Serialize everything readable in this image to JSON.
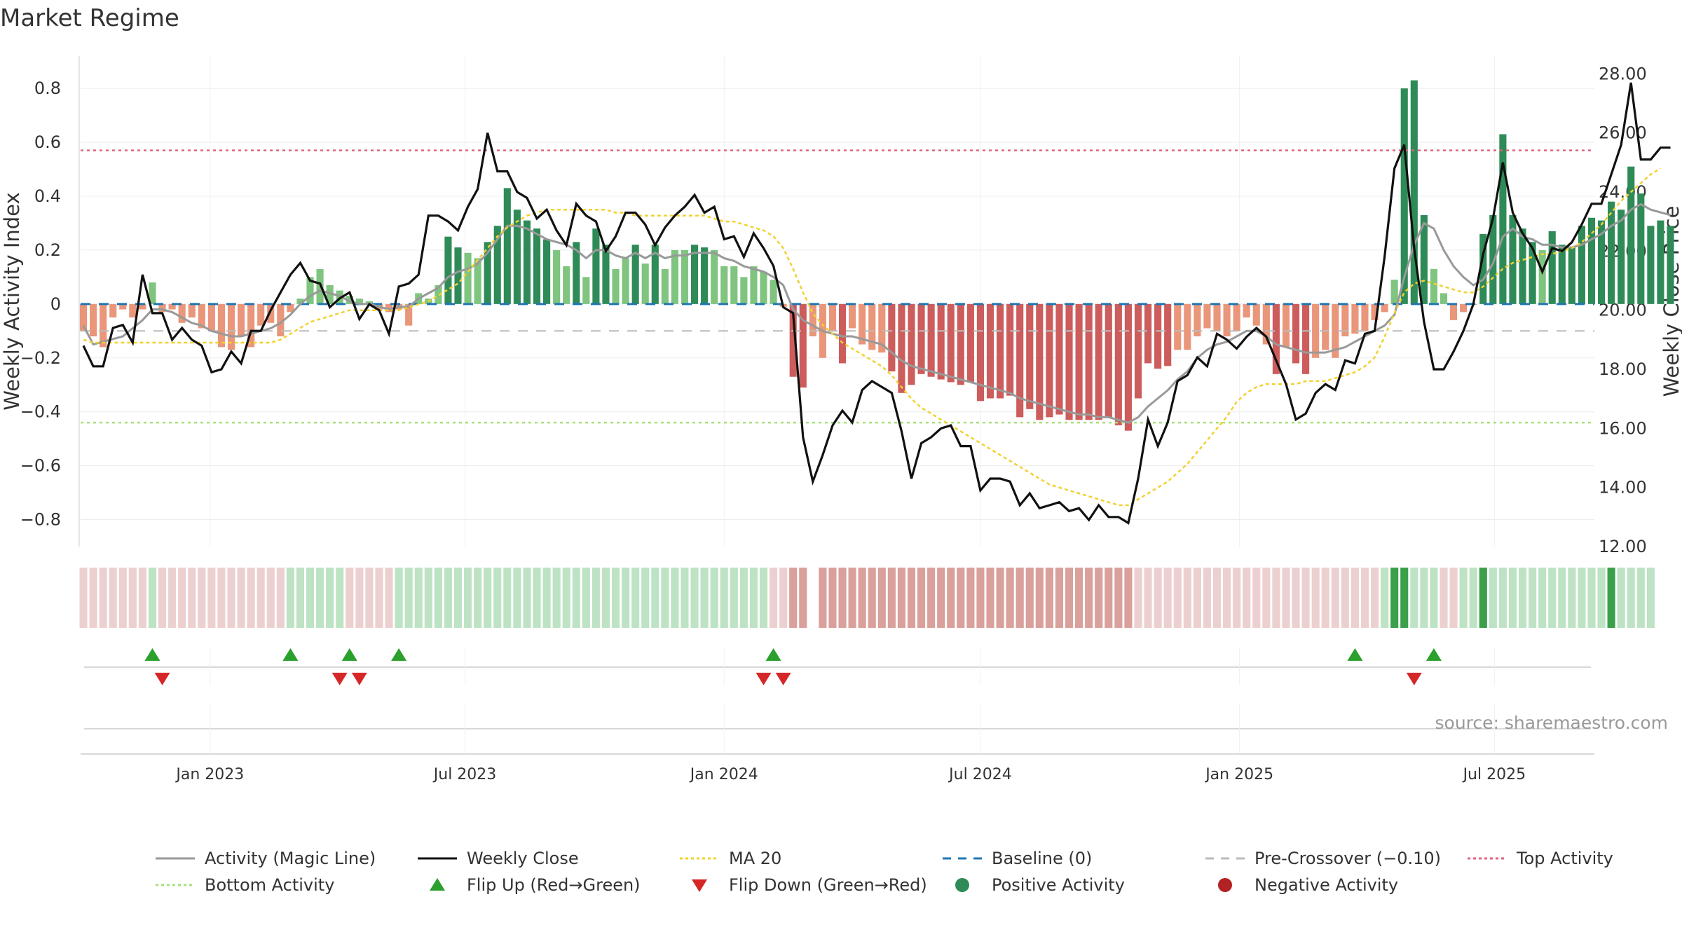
{
  "title": "Market Regime",
  "source": "source: sharemaestro.com",
  "colors": {
    "pos_strong": "#2e8b57",
    "pos_light": "#7fc47f",
    "neg_strong": "#cd5c5c",
    "neg_light": "#e9967a",
    "activity_line": "#999999",
    "close_line": "#111111",
    "ma_line": "#f2d12e",
    "baseline": "#1f77b4",
    "pre_cross": "#bbbbbb",
    "top": "#e0647a",
    "bottom": "#a8e07a",
    "flip_up": "#2ca02c",
    "flip_down": "#d62728"
  },
  "chart_data": {
    "type": "bar",
    "title": "Market Regime",
    "ylabel": "Weekly Activity Index",
    "y2label": "Weekly Close Price",
    "ylim": [
      -0.9,
      0.92
    ],
    "y2lim": [
      12,
      28.6
    ],
    "yticks": [
      -0.8,
      -0.6,
      -0.4,
      -0.2,
      0,
      0.2,
      0.4,
      0.6,
      0.8
    ],
    "ytick_labels": [
      "−0.8",
      "−0.6",
      "−0.4",
      "−0.2",
      "0",
      "0.2",
      "0.4",
      "0.6",
      "0.8"
    ],
    "y2ticks": [
      12,
      14,
      16,
      18,
      20,
      22,
      24,
      26,
      28
    ],
    "y2tick_labels": [
      "12.00",
      "14.00",
      "16.00",
      "18.00",
      "20.00",
      "22.00",
      "24.00",
      "26.00",
      "28.00"
    ],
    "xaxis_start": "2022-10-01",
    "xaxis_end": "2025-09-10",
    "xtick_dates": [
      "2023-01-01",
      "2023-07-01",
      "2024-01-01",
      "2024-07-01",
      "2025-01-01",
      "2025-07-01"
    ],
    "xtick_labels": [
      "Jan 2023",
      "Jul 2023",
      "Jan 2024",
      "Jul 2024",
      "Jan 2025",
      "Jul 2025"
    ],
    "first_week": "2022-10-03",
    "top_activity": 0.57,
    "bottom_activity": -0.44,
    "baseline": 0,
    "pre_crossover": -0.1,
    "activity": [
      -0.1,
      -0.12,
      -0.16,
      -0.05,
      -0.02,
      -0.05,
      -0.02,
      0.08,
      -0.03,
      -0.02,
      -0.07,
      -0.05,
      -0.09,
      -0.1,
      -0.16,
      -0.17,
      -0.12,
      -0.16,
      -0.08,
      -0.07,
      -0.12,
      -0.03,
      0.02,
      0.1,
      0.13,
      0.07,
      0.05,
      0.03,
      0.02,
      0.01,
      -0.02,
      -0.03,
      -0.02,
      -0.08,
      0.04,
      0.02,
      0.07,
      0.25,
      0.21,
      0.19,
      0.17,
      0.23,
      0.29,
      0.43,
      0.35,
      0.31,
      0.28,
      0.24,
      0.2,
      0.14,
      0.23,
      0.1,
      0.28,
      0.22,
      0.13,
      0.17,
      0.22,
      0.15,
      0.22,
      0.13,
      0.2,
      0.2,
      0.22,
      0.21,
      0.2,
      0.14,
      0.14,
      0.1,
      0.14,
      0.12,
      0.09,
      -0.01,
      -0.27,
      -0.31,
      -0.12,
      -0.2,
      -0.1,
      -0.22,
      -0.09,
      -0.15,
      -0.17,
      -0.18,
      -0.25,
      -0.33,
      -0.3,
      -0.26,
      -0.27,
      -0.28,
      -0.29,
      -0.3,
      -0.29,
      -0.36,
      -0.35,
      -0.35,
      -0.34,
      -0.42,
      -0.39,
      -0.43,
      -0.42,
      -0.41,
      -0.43,
      -0.43,
      -0.43,
      -0.43,
      -0.42,
      -0.45,
      -0.47,
      -0.35,
      -0.22,
      -0.24,
      -0.23,
      -0.17,
      -0.17,
      -0.12,
      -0.09,
      -0.1,
      -0.12,
      -0.1,
      -0.05,
      -0.08,
      -0.15,
      -0.26,
      -0.16,
      -0.22,
      -0.26,
      -0.2,
      -0.17,
      -0.2,
      -0.12,
      -0.11,
      -0.1,
      -0.06,
      -0.03,
      0.09,
      0.8,
      0.83,
      0.33,
      0.13,
      0.04,
      -0.06,
      -0.03,
      0.0,
      0.26,
      0.33,
      0.63,
      0.33,
      0.28,
      0.23,
      0.2,
      0.27,
      0.22,
      0.21,
      0.29,
      0.32,
      0.31,
      0.38,
      0.35,
      0.51,
      0.41,
      0.29,
      0.31,
      0.29
    ],
    "close": [
      18.8,
      18.1,
      18.1,
      19.4,
      19.5,
      18.9,
      21.2,
      19.9,
      19.9,
      19.0,
      19.4,
      19.0,
      18.8,
      17.9,
      18.0,
      18.6,
      18.2,
      19.3,
      19.3,
      20.0,
      20.6,
      21.2,
      21.6,
      21.0,
      20.9,
      20.1,
      20.4,
      20.6,
      19.7,
      20.2,
      20.0,
      19.2,
      20.8,
      20.9,
      21.2,
      23.2,
      23.2,
      23.0,
      22.7,
      23.5,
      24.1,
      26.0,
      24.7,
      24.7,
      24.0,
      23.8,
      23.1,
      23.4,
      22.7,
      22.2,
      23.6,
      23.2,
      23.0,
      22.0,
      22.5,
      23.3,
      23.3,
      22.9,
      22.2,
      22.8,
      23.2,
      23.5,
      23.9,
      23.3,
      23.5,
      22.4,
      22.5,
      21.8,
      22.6,
      22.1,
      21.5,
      20.1,
      19.9,
      15.7,
      14.2,
      15.1,
      16.1,
      16.6,
      16.2,
      17.3,
      17.6,
      17.4,
      17.2,
      15.9,
      14.3,
      15.5,
      15.7,
      16.0,
      16.1,
      15.4,
      15.4,
      13.9,
      14.3,
      14.3,
      14.2,
      13.4,
      13.8,
      13.3,
      13.4,
      13.5,
      13.2,
      13.3,
      12.9,
      13.4,
      13.0,
      13.0,
      12.8,
      14.3,
      16.3,
      15.4,
      16.2,
      17.6,
      17.8,
      18.4,
      18.1,
      19.2,
      19.0,
      18.7,
      19.1,
      19.4,
      19.1,
      18.3,
      17.5,
      16.3,
      16.5,
      17.2,
      17.5,
      17.3,
      18.3,
      18.2,
      19.2,
      19.3,
      21.8,
      24.8,
      25.6,
      22.1,
      19.6,
      18.0,
      18.0,
      18.6,
      19.3,
      20.2,
      21.9,
      23.1,
      25.0,
      23.3,
      22.6,
      22.1,
      21.3,
      22.1,
      22.0,
      22.3,
      22.9,
      23.6,
      23.6,
      24.6,
      25.6,
      27.7,
      25.1,
      25.1,
      25.5,
      25.5
    ],
    "activity_line": [
      -0.08,
      -0.15,
      -0.14,
      -0.13,
      -0.12,
      -0.09,
      -0.06,
      -0.02,
      -0.02,
      -0.03,
      -0.05,
      -0.07,
      -0.08,
      -0.1,
      -0.11,
      -0.12,
      -0.12,
      -0.11,
      -0.1,
      -0.09,
      -0.07,
      -0.04,
      0.0,
      0.03,
      0.05,
      0.04,
      0.03,
      0.01,
      0.0,
      0.0,
      -0.01,
      -0.02,
      -0.01,
      -0.01,
      0.02,
      0.04,
      0.06,
      0.1,
      0.12,
      0.13,
      0.15,
      0.19,
      0.24,
      0.29,
      0.29,
      0.28,
      0.26,
      0.24,
      0.23,
      0.22,
      0.2,
      0.17,
      0.2,
      0.2,
      0.18,
      0.17,
      0.19,
      0.17,
      0.19,
      0.17,
      0.18,
      0.18,
      0.19,
      0.19,
      0.19,
      0.17,
      0.16,
      0.14,
      0.13,
      0.12,
      0.1,
      0.07,
      -0.02,
      -0.06,
      -0.08,
      -0.1,
      -0.11,
      -0.12,
      -0.12,
      -0.13,
      -0.14,
      -0.15,
      -0.18,
      -0.21,
      -0.23,
      -0.24,
      -0.25,
      -0.26,
      -0.27,
      -0.28,
      -0.29,
      -0.3,
      -0.31,
      -0.32,
      -0.33,
      -0.35,
      -0.36,
      -0.37,
      -0.38,
      -0.39,
      -0.4,
      -0.41,
      -0.41,
      -0.42,
      -0.42,
      -0.43,
      -0.44,
      -0.42,
      -0.38,
      -0.35,
      -0.32,
      -0.28,
      -0.25,
      -0.2,
      -0.17,
      -0.15,
      -0.14,
      -0.12,
      -0.1,
      -0.1,
      -0.12,
      -0.15,
      -0.16,
      -0.17,
      -0.18,
      -0.18,
      -0.18,
      -0.17,
      -0.16,
      -0.14,
      -0.12,
      -0.1,
      -0.08,
      -0.04,
      0.1,
      0.22,
      0.3,
      0.28,
      0.2,
      0.14,
      0.1,
      0.07,
      0.09,
      0.15,
      0.25,
      0.28,
      0.25,
      0.24,
      0.22,
      0.22,
      0.21,
      0.21,
      0.22,
      0.24,
      0.26,
      0.29,
      0.31,
      0.35,
      0.37,
      0.35,
      0.34,
      0.33
    ],
    "ma20": [
      19.0,
      18.9,
      18.9,
      18.9,
      18.9,
      18.9,
      18.9,
      18.9,
      18.9,
      18.9,
      18.9,
      18.9,
      18.9,
      18.9,
      18.9,
      18.9,
      18.9,
      18.9,
      18.9,
      18.9,
      19.0,
      19.2,
      19.4,
      19.6,
      19.7,
      19.8,
      19.9,
      20.0,
      20.0,
      20.0,
      20.0,
      20.0,
      20.0,
      20.1,
      20.2,
      20.3,
      20.5,
      20.7,
      20.9,
      21.3,
      21.7,
      22.1,
      22.5,
      22.8,
      23.0,
      23.2,
      23.3,
      23.4,
      23.4,
      23.4,
      23.4,
      23.4,
      23.4,
      23.4,
      23.3,
      23.3,
      23.2,
      23.2,
      23.2,
      23.2,
      23.2,
      23.2,
      23.2,
      23.2,
      23.1,
      23.0,
      23.0,
      22.9,
      22.8,
      22.7,
      22.5,
      22.1,
      21.4,
      20.6,
      19.9,
      19.5,
      19.2,
      18.9,
      18.7,
      18.5,
      18.3,
      18.1,
      17.8,
      17.4,
      17.0,
      16.7,
      16.5,
      16.3,
      16.1,
      15.9,
      15.7,
      15.5,
      15.3,
      15.1,
      14.9,
      14.7,
      14.5,
      14.3,
      14.1,
      14.0,
      13.9,
      13.8,
      13.7,
      13.6,
      13.5,
      13.4,
      13.4,
      13.6,
      13.8,
      14.0,
      14.2,
      14.5,
      14.8,
      15.2,
      15.6,
      16.0,
      16.4,
      16.9,
      17.2,
      17.4,
      17.5,
      17.5,
      17.5,
      17.5,
      17.6,
      17.6,
      17.6,
      17.7,
      17.8,
      17.9,
      18.1,
      18.4,
      19.1,
      19.9,
      20.6,
      20.9,
      21.0,
      20.9,
      20.8,
      20.7,
      20.6,
      20.6,
      20.8,
      21.1,
      21.4,
      21.6,
      21.7,
      21.8,
      21.9,
      21.9,
      22.0,
      22.1,
      22.3,
      22.6,
      22.9,
      23.3,
      23.7,
      24.0,
      24.3,
      24.6,
      24.8
    ],
    "flip_up_weeks": [
      7,
      21,
      27,
      32,
      70,
      129,
      137
    ],
    "flip_down_weeks": [
      8,
      26,
      28,
      69,
      71,
      135
    ],
    "regime_strip": [
      -1,
      -1,
      -1,
      -1,
      -1,
      -1,
      -1,
      1,
      -1,
      -1,
      -1,
      -1,
      -1,
      -1,
      -1,
      -1,
      -1,
      -1,
      -1,
      -1,
      -1,
      1,
      1,
      1,
      1,
      1,
      1,
      -1,
      -1,
      -1,
      -1,
      -1,
      1,
      1,
      1,
      1,
      1,
      1,
      1,
      1,
      1,
      1,
      1,
      1,
      1,
      1,
      1,
      1,
      1,
      1,
      1,
      1,
      1,
      1,
      1,
      1,
      1,
      1,
      1,
      1,
      1,
      1,
      1,
      1,
      1,
      1,
      1,
      1,
      1,
      1,
      -1,
      -1,
      -2,
      -2,
      0,
      -2,
      -2,
      -2,
      -2,
      -2,
      -2,
      -2,
      -2,
      -2,
      -2,
      -2,
      -2,
      -2,
      -2,
      -2,
      -2,
      -2,
      -2,
      -2,
      -2,
      -2,
      -2,
      -2,
      -2,
      -2,
      -2,
      -2,
      -2,
      -2,
      -2,
      -2,
      -2,
      -1,
      -1,
      -1,
      -1,
      -1,
      -1,
      -1,
      -1,
      -1,
      -1,
      -1,
      -1,
      -1,
      -1,
      -1,
      -1,
      -1,
      -1,
      -1,
      -1,
      -1,
      -1,
      -1,
      -1,
      -1,
      1,
      2,
      2,
      1,
      1,
      1,
      -1,
      -1,
      1,
      1,
      2,
      1,
      1,
      1,
      1,
      1,
      1,
      1,
      1,
      1,
      1,
      1,
      1,
      2,
      1,
      1,
      1,
      1
    ],
    "legend": [
      {
        "label": "Activity (Magic Line)",
        "kind": "line",
        "color": "#999999",
        "dash": ""
      },
      {
        "label": "Weekly Close",
        "kind": "line",
        "color": "#111111",
        "dash": ""
      },
      {
        "label": "MA 20",
        "kind": "line",
        "color": "#f2d12e",
        "dash": "4,4"
      },
      {
        "label": "Baseline (0)",
        "kind": "line",
        "color": "#1f77b4",
        "dash": "12,10"
      },
      {
        "label": "Pre-Crossover (−0.10)",
        "kind": "line",
        "color": "#bbbbbb",
        "dash": "12,10"
      },
      {
        "label": "Top Activity",
        "kind": "line",
        "color": "#e0647a",
        "dash": "4,4"
      },
      {
        "label": "Bottom Activity",
        "kind": "line",
        "color": "#a8e07a",
        "dash": "4,4"
      },
      {
        "label": "Flip Up (Red→Green)",
        "kind": "tri-up",
        "color": "#2ca02c",
        "dash": ""
      },
      {
        "label": "Flip Down (Green→Red)",
        "kind": "tri-down",
        "color": "#d62728",
        "dash": ""
      },
      {
        "label": "Positive Activity",
        "kind": "dot",
        "color": "#2e8b57",
        "dash": ""
      },
      {
        "label": "Negative Activity",
        "kind": "dot",
        "color": "#b22222",
        "dash": ""
      }
    ]
  }
}
